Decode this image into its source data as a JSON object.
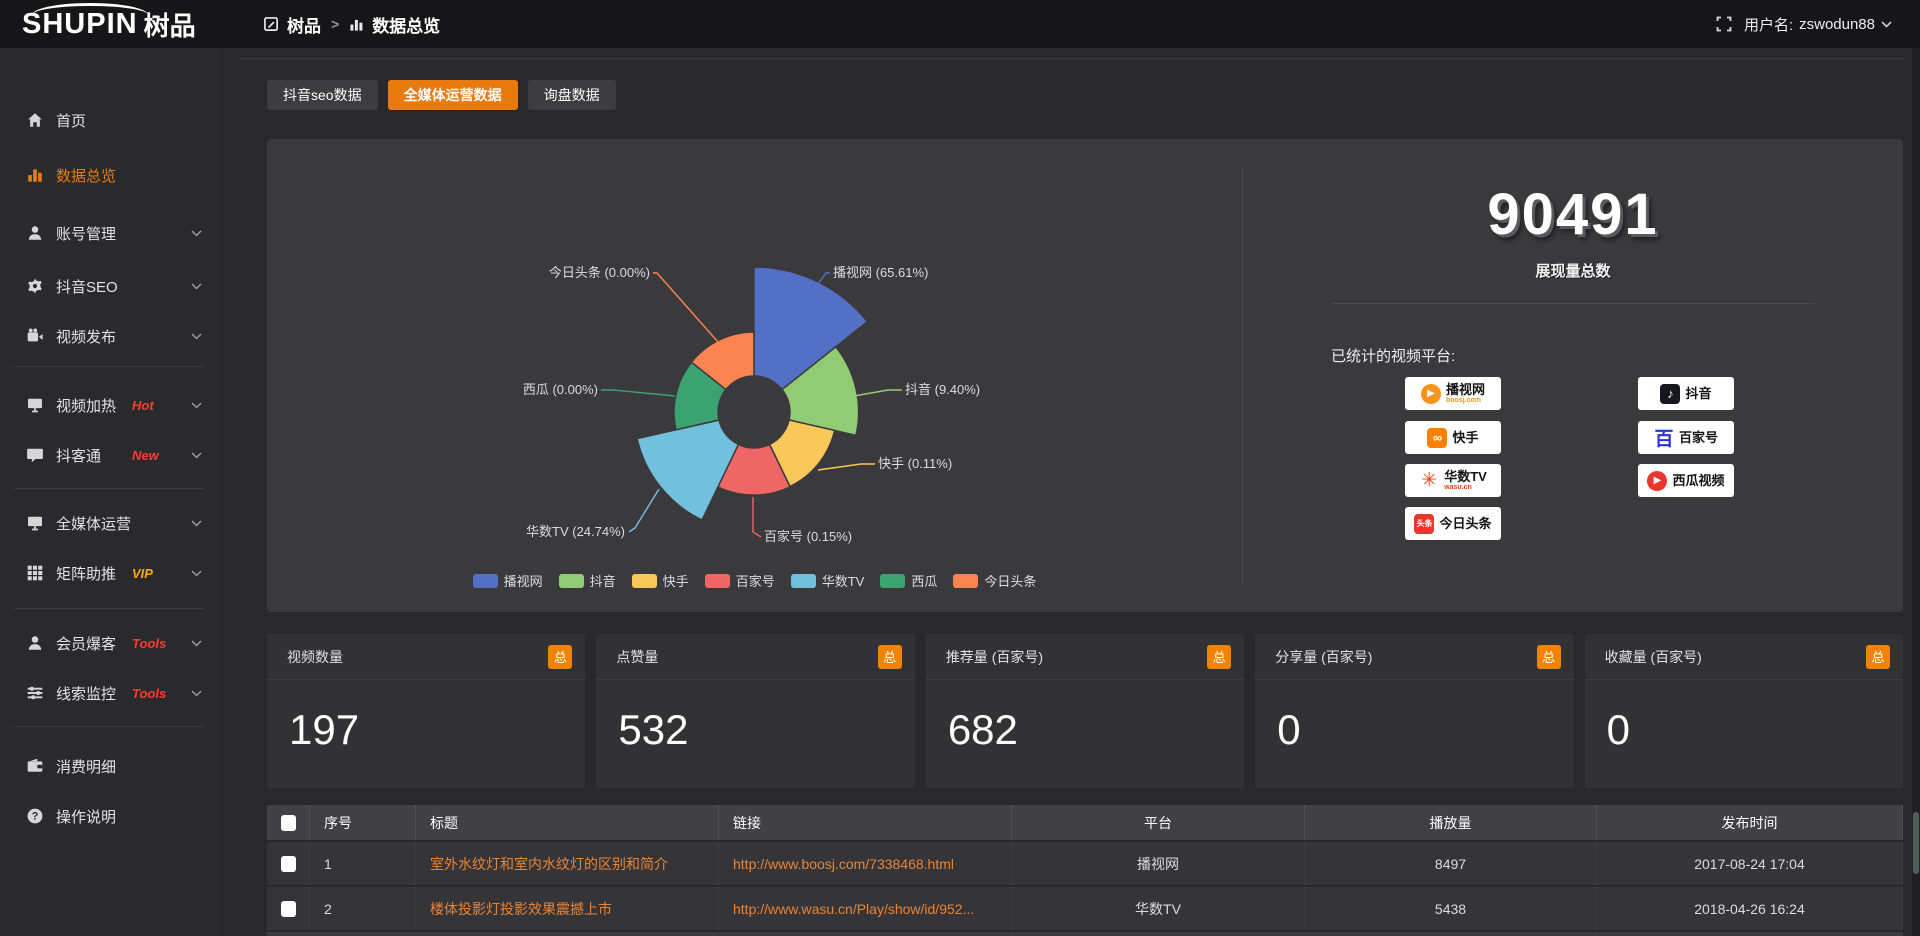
{
  "topbar": {
    "logo_en": "SHUPIN",
    "logo_cn": "树品",
    "breadcrumb": [
      "树品",
      "数据总览"
    ],
    "breadcrumb_separator": ">",
    "username_label": "用户名:",
    "username": "zswodun88"
  },
  "sidebar": {
    "items": [
      {
        "label": "首页",
        "icon": "home-icon"
      },
      {
        "label": "数据总览",
        "icon": "bar-chart-icon",
        "active": true
      },
      {
        "label": "账号管理",
        "icon": "user-icon",
        "chevron": true
      },
      {
        "label": "抖音SEO",
        "icon": "gear-icon",
        "chevron": true
      },
      {
        "label": "视频发布",
        "icon": "video-icon",
        "chevron": true
      },
      {
        "type": "divider"
      },
      {
        "label": "视频加热",
        "icon": "monitor-icon",
        "badge": "Hot",
        "badge_color": "#ff3b30",
        "chevron": true
      },
      {
        "label": "抖客通",
        "icon": "comment-icon",
        "badge": "New",
        "badge_color": "#ff3b30",
        "chevron": true
      },
      {
        "type": "divider"
      },
      {
        "label": "全媒体运营",
        "icon": "display-icon",
        "chevron": true
      },
      {
        "label": "矩阵助推",
        "icon": "grid-icon",
        "badge": "VIP",
        "badge_color": "#ffaa00",
        "chevron": true
      },
      {
        "type": "divider"
      },
      {
        "label": "会员爆客",
        "icon": "member-icon",
        "badge": "Tools",
        "badge_color": "#ff3b30",
        "chevron": true
      },
      {
        "label": "线索监控",
        "icon": "sliders-icon",
        "badge": "Tools",
        "badge_color": "#ff3b30",
        "chevron": true
      },
      {
        "type": "divider"
      },
      {
        "label": "消费明细",
        "icon": "wallet-icon"
      },
      {
        "label": "操作说明",
        "icon": "help-icon"
      }
    ]
  },
  "tabs": [
    {
      "label": "抖音seo数据",
      "active": false
    },
    {
      "label": "全媒体运营数据",
      "active": true
    },
    {
      "label": "询盘数据",
      "active": false
    }
  ],
  "chart_data": {
    "type": "pie",
    "subtype": "nightingale-rose",
    "names": [
      "播视网",
      "抖音",
      "快手",
      "百家号",
      "华数TV",
      "西瓜",
      "今日头条"
    ],
    "values": [
      65.61,
      9.4,
      0.11,
      0.15,
      24.74,
      0.0,
      0.0
    ],
    "pcts": [
      "65.61",
      "9.40",
      "0.11",
      "0.15",
      "24.74",
      "0.00",
      "0.00"
    ],
    "unit": "%",
    "colors": [
      "#5470c6",
      "#91cc75",
      "#fac858",
      "#ee6666",
      "#73c0de",
      "#3ba272",
      "#fc8452"
    ],
    "label_format": "{name} ({pct}%)",
    "legend_position": "bottom"
  },
  "summary": {
    "total": "90491",
    "total_label": "展现量总数",
    "platforms_label": "已统计的视频平台:",
    "platforms": [
      {
        "name": "播视网",
        "sub": "boosj.com",
        "sub_color": "#f7941d",
        "glyph": "▶",
        "logo_bg": "#f7941d",
        "logo_fg": "#ffffff",
        "logo_shape": "circle",
        "col": 0,
        "row": 0
      },
      {
        "name": "抖音",
        "glyph": "♪",
        "logo_bg": "#16161e",
        "logo_fg": "#ffffff",
        "logo_shape": "square",
        "col": 1,
        "row": 0
      },
      {
        "name": "快手",
        "glyph": "∞",
        "logo_bg": "#ff7f00",
        "logo_fg": "#ffffff",
        "logo_shape": "square",
        "col": 0,
        "row": 1
      },
      {
        "name": "百家号",
        "glyph": "百",
        "logo_bg": "",
        "logo_fg": "#2932e1",
        "logo_shape": "plain",
        "col": 1,
        "row": 1
      },
      {
        "name": "华数TV",
        "sub": "wasu.cn",
        "sub_color": "#e8420d",
        "glyph": "✳",
        "logo_bg": "",
        "logo_fg": "#e8420d",
        "logo_shape": "plain",
        "col": 0,
        "row": 2
      },
      {
        "name": "西瓜视频",
        "glyph": "▶",
        "logo_bg": "#e8372c",
        "logo_fg": "#ffffff",
        "logo_shape": "circle",
        "col": 1,
        "row": 2
      },
      {
        "name": "今日头条",
        "glyph": "头条",
        "logo_bg": "#e8372c",
        "logo_fg": "#ffffff",
        "logo_shape": "square-tiny",
        "col": 0,
        "row": 3
      }
    ]
  },
  "stat_cards": [
    {
      "label": "视频数量",
      "badge": "总",
      "value": "197"
    },
    {
      "label": "点赞量",
      "badge": "总",
      "value": "532"
    },
    {
      "label": "推荐量 (百家号)",
      "badge": "总",
      "value": "682"
    },
    {
      "label": "分享量 (百家号)",
      "badge": "总",
      "value": "0"
    },
    {
      "label": "收藏量 (百家号)",
      "badge": "总",
      "value": "0"
    }
  ],
  "table": {
    "headers": [
      "序号",
      "标题",
      "链接",
      "平台",
      "播放量",
      "发布时间"
    ],
    "rows": [
      {
        "index": "1",
        "title": "室外水纹灯和室内水纹灯的区别和简介",
        "link": "http://www.boosj.com/7338468.html",
        "platform": "播视网",
        "plays": "8497",
        "time": "2017-08-24 17:04"
      },
      {
        "index": "2",
        "title": "楼体投影灯投影效果震撼上市",
        "link": "http://www.wasu.cn/Play/show/id/952...",
        "platform": "华数TV",
        "plays": "5438",
        "time": "2018-04-26 16:24"
      }
    ]
  }
}
